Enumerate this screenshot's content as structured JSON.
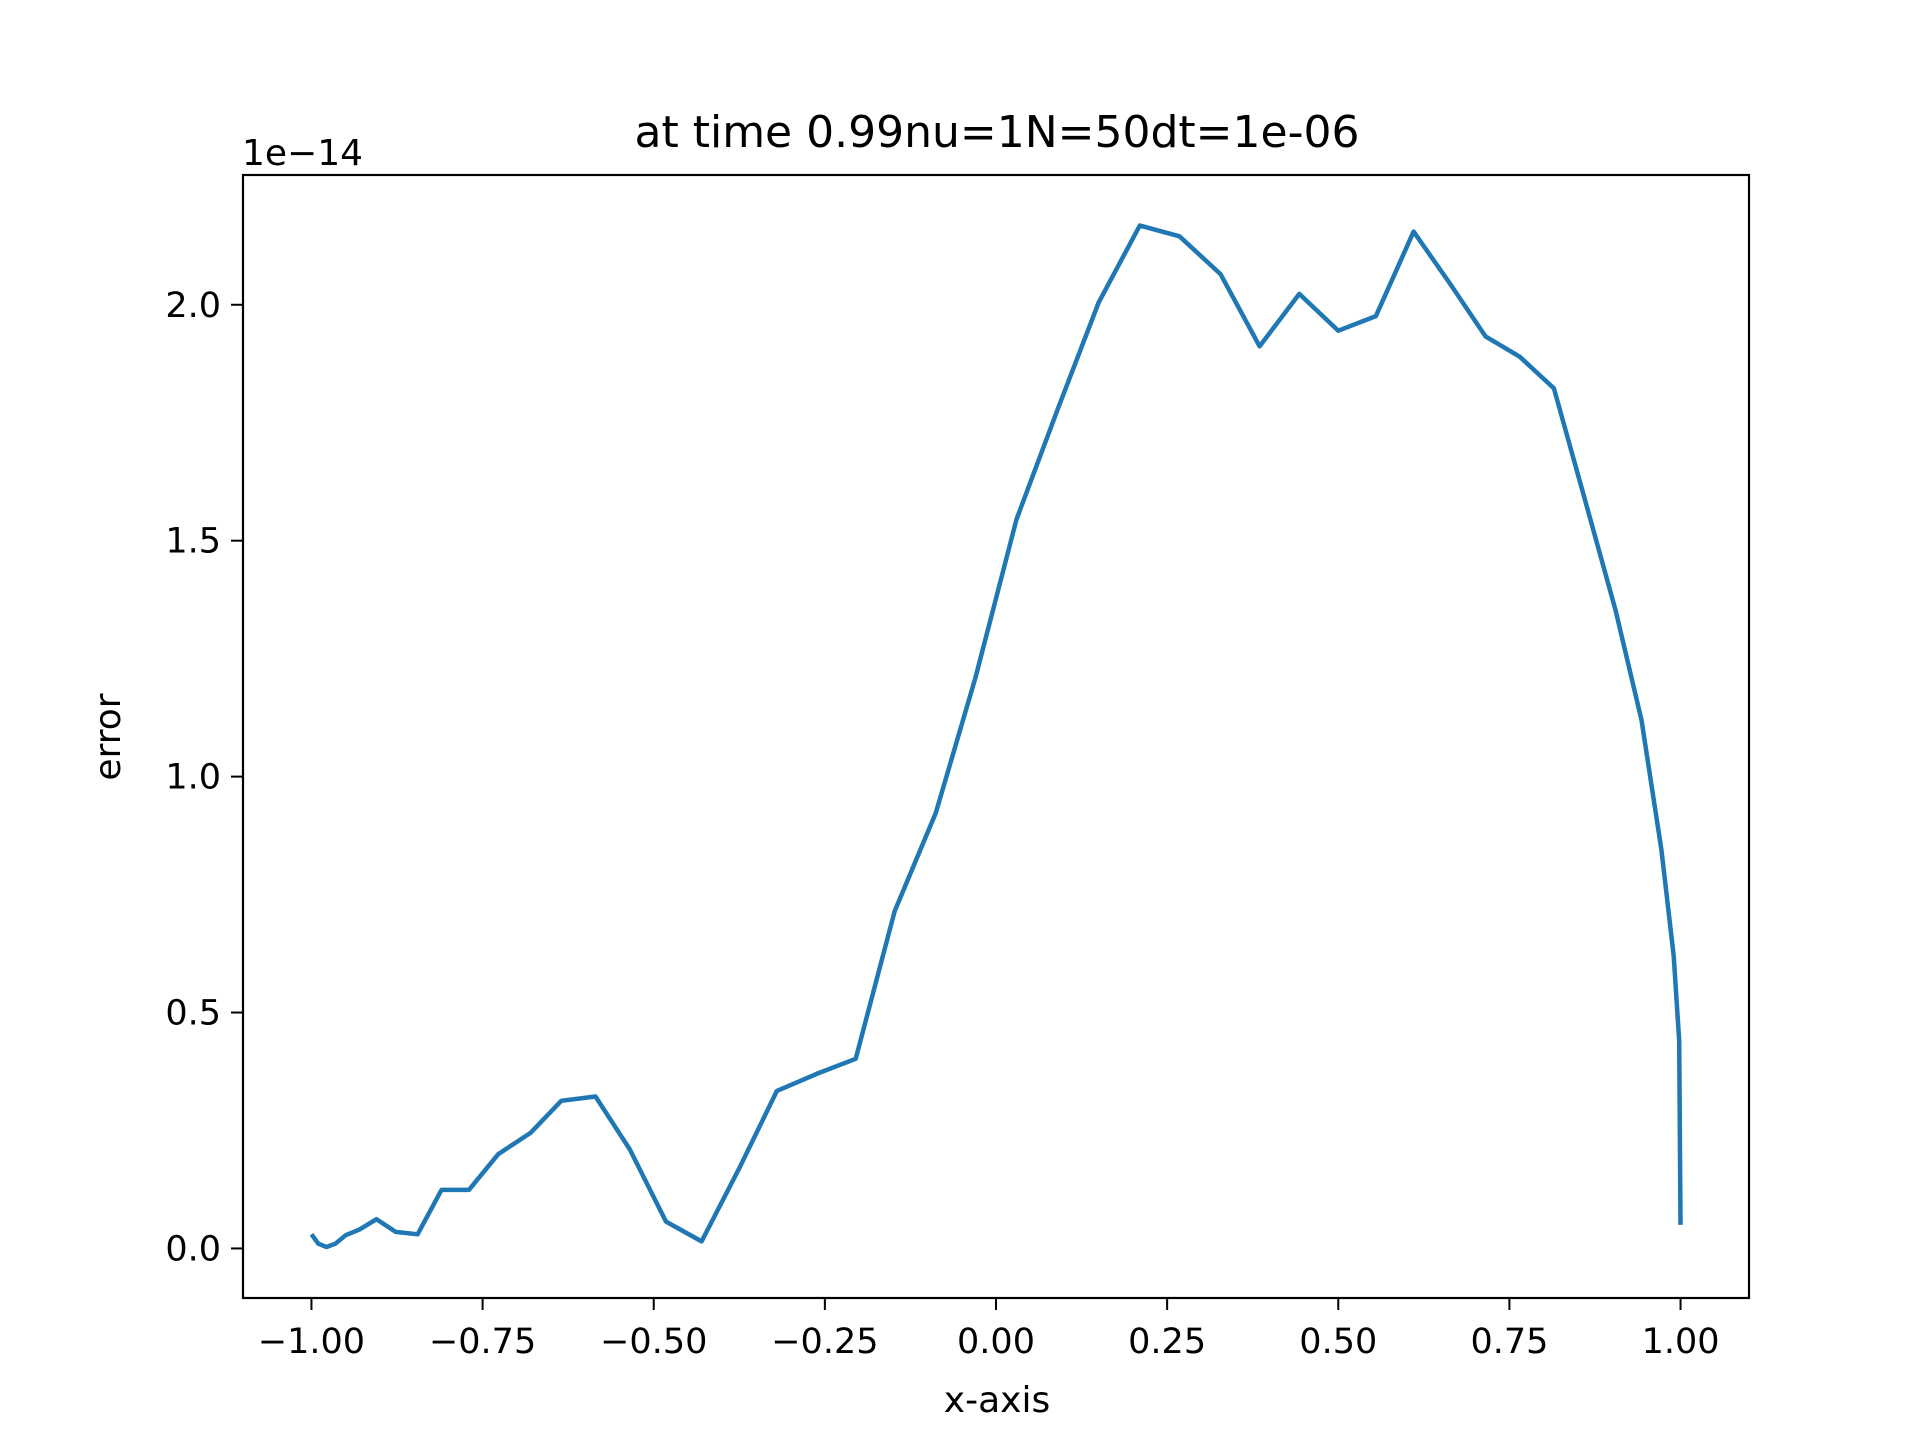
{
  "chart_data": {
    "type": "line",
    "title": "at time 0.99nu=1N=50dt=1e-06",
    "xlabel": "x-axis",
    "ylabel": "error",
    "y_offset_label": "1e−14",
    "xlim": [
      -1.1,
      1.1
    ],
    "ylim": [
      -0.105,
      2.275
    ],
    "xticks": [
      {
        "value": -1.0,
        "label": "−1.00"
      },
      {
        "value": -0.75,
        "label": "−0.75"
      },
      {
        "value": -0.5,
        "label": "−0.50"
      },
      {
        "value": -0.25,
        "label": "−0.25"
      },
      {
        "value": 0.0,
        "label": "0.00"
      },
      {
        "value": 0.25,
        "label": "0.25"
      },
      {
        "value": 0.5,
        "label": "0.50"
      },
      {
        "value": 0.75,
        "label": "0.75"
      },
      {
        "value": 1.0,
        "label": "1.00"
      }
    ],
    "yticks": [
      {
        "value": 0.0,
        "label": "0.0"
      },
      {
        "value": 0.5,
        "label": "0.5"
      },
      {
        "value": 1.0,
        "label": "1.0"
      },
      {
        "value": 1.5,
        "label": "1.5"
      },
      {
        "value": 2.0,
        "label": "2.0"
      }
    ],
    "grid": false,
    "line_color": "#1f77b4",
    "series": [
      {
        "x": [
          -1.0,
          -0.99,
          -0.978,
          -0.965,
          -0.95,
          -0.93,
          -0.905,
          -0.877,
          -0.845,
          -0.81,
          -0.77,
          -0.727,
          -0.68,
          -0.635,
          -0.585,
          -0.535,
          -0.482,
          -0.43,
          -0.375,
          -0.32,
          -0.262,
          -0.205,
          -0.148,
          -0.088,
          -0.03,
          0.03,
          0.09,
          0.15,
          0.21,
          0.268,
          0.328,
          0.385,
          0.443,
          0.5,
          0.555,
          0.61,
          0.663,
          0.715,
          0.765,
          0.815,
          0.862,
          0.905,
          0.943,
          0.972,
          0.99,
          0.998,
          1.0
        ],
        "y": [
          0.03,
          0.01,
          0.003,
          0.01,
          0.028,
          0.04,
          0.062,
          0.035,
          0.03,
          0.124,
          0.124,
          0.2,
          0.245,
          0.313,
          0.322,
          0.21,
          0.057,
          0.015,
          0.17,
          0.334,
          0.37,
          0.402,
          0.715,
          0.923,
          1.21,
          1.545,
          1.778,
          2.005,
          2.168,
          2.145,
          2.065,
          1.912,
          2.023,
          1.945,
          1.976,
          2.155,
          2.045,
          1.933,
          1.89,
          1.823,
          1.578,
          1.353,
          1.12,
          0.845,
          0.62,
          0.44,
          0.05
        ]
      }
    ]
  }
}
